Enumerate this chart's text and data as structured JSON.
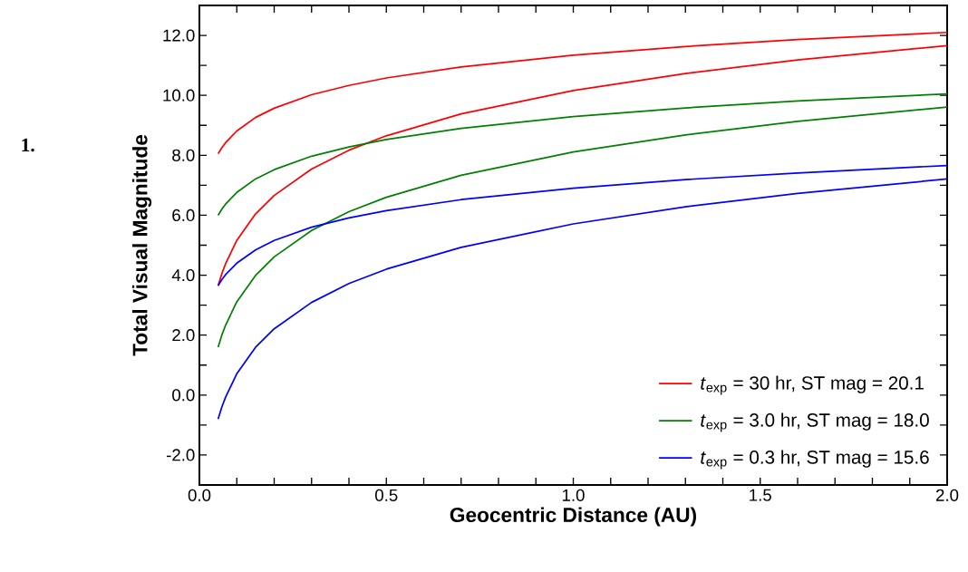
{
  "chart_data": {
    "type": "line",
    "xlabel": "Geocentric Distance  (AU)",
    "ylabel": "Total Visual Magnitude",
    "annotations": [
      "1."
    ],
    "x": [
      0.05,
      0.06,
      0.07,
      0.1,
      0.15,
      0.2,
      0.3,
      0.4,
      0.5,
      0.7,
      1.0,
      1.3,
      1.6,
      2.0
    ],
    "series": [
      {
        "name": "*t*$_{exp}$ =  30 hr,  ST mag = 20.1",
        "color": "#ff0000",
        "values": [
          8.05,
          8.25,
          8.42,
          8.81,
          9.26,
          9.57,
          10.02,
          10.33,
          10.58,
          10.95,
          11.34,
          11.63,
          11.86,
          12.1
        ]
      },
      {
        "color": "#ff0000",
        "values": [
          3.65,
          4.05,
          4.38,
          5.16,
          6.04,
          6.66,
          7.54,
          8.17,
          8.65,
          9.38,
          10.16,
          10.73,
          11.18,
          11.66
        ]
      },
      {
        "name": "*t*$_{exp}$ = 3.0 hr,  ST mag = 18.0",
        "color": "#008000",
        "values": [
          6.0,
          6.2,
          6.37,
          6.76,
          7.21,
          7.52,
          7.97,
          8.28,
          8.53,
          8.9,
          9.29,
          9.58,
          9.81,
          10.05
        ]
      },
      {
        "color": "#008000",
        "values": [
          1.6,
          2.0,
          2.33,
          3.11,
          3.99,
          4.61,
          5.49,
          6.12,
          6.6,
          7.33,
          8.11,
          8.68,
          9.13,
          9.61
        ]
      },
      {
        "name": "*t*$_{exp}$ = 0.3 hr,  ST mag = 15.6",
        "color": "#0000ff",
        "values": [
          3.65,
          3.85,
          4.02,
          4.4,
          4.84,
          5.16,
          5.6,
          5.91,
          6.15,
          6.52,
          6.9,
          7.19,
          7.41,
          7.66
        ]
      },
      {
        "color": "#0000ff",
        "values": [
          -0.8,
          -0.4,
          -0.07,
          0.71,
          1.59,
          2.21,
          3.09,
          3.72,
          4.2,
          4.93,
          5.71,
          6.28,
          6.73,
          7.21
        ]
      }
    ],
    "xlim": [
      0,
      2
    ],
    "ylim": [
      -3,
      13
    ],
    "xticks": [
      {
        "value": 0,
        "label": "0.0"
      },
      {
        "value": 0.1,
        "label": null
      },
      {
        "value": 0.2,
        "label": null
      },
      {
        "value": 0.3,
        "label": null
      },
      {
        "value": 0.4,
        "label": null
      },
      {
        "value": 0.5,
        "label": "0.5"
      },
      {
        "value": 0.6,
        "label": null
      },
      {
        "value": 0.7,
        "label": null
      },
      {
        "value": 0.8,
        "label": null
      },
      {
        "value": 0.9,
        "label": null
      },
      {
        "value": 1,
        "label": "1.0"
      },
      {
        "value": 1.1,
        "label": null
      },
      {
        "value": 1.2,
        "label": null
      },
      {
        "value": 1.3,
        "label": null
      },
      {
        "value": 1.4,
        "label": null
      },
      {
        "value": 1.5,
        "label": "1.5"
      },
      {
        "value": 1.6,
        "label": null
      },
      {
        "value": 1.7,
        "label": null
      },
      {
        "value": 1.8,
        "label": null
      },
      {
        "value": 1.9,
        "label": null
      },
      {
        "value": 2,
        "label": "2.0"
      }
    ],
    "yticks": [
      {
        "value": -2,
        "label": "-2.0"
      },
      {
        "value": -1,
        "label": null
      },
      {
        "value": 0,
        "label": "0.0"
      },
      {
        "value": 1,
        "label": null
      },
      {
        "value": 2,
        "label": "2.0"
      },
      {
        "value": 3,
        "label": null
      },
      {
        "value": 4,
        "label": "4.0"
      },
      {
        "value": 5,
        "label": null
      },
      {
        "value": 6,
        "label": "6.0"
      },
      {
        "value": 7,
        "label": null
      },
      {
        "value": 8,
        "label": "8.0"
      },
      {
        "value": 9,
        "label": null
      },
      {
        "value": 10,
        "label": "10.0"
      },
      {
        "value": 11,
        "label": null
      },
      {
        "value": 12,
        "label": "12.0"
      }
    ],
    "grid": false,
    "legend": "bottom right",
    "marker": "none",
    "line_style": "solid"
  }
}
